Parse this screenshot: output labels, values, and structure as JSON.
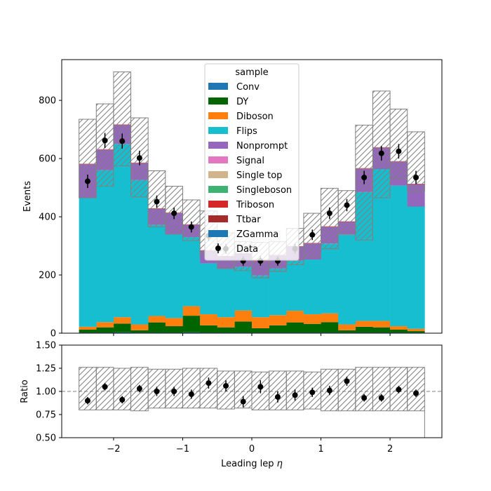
{
  "chart_data": [
    {
      "type": "bar",
      "stacked": true,
      "ylabel": "Events",
      "ylim": [
        0,
        940
      ],
      "yticks": [
        0,
        200,
        400,
        600,
        800
      ],
      "xlim": [
        -2.75,
        2.75
      ],
      "bin_edges": [
        -2.5,
        -2.25,
        -2.0,
        -1.75,
        -1.5,
        -1.25,
        -1.0,
        -0.75,
        -0.5,
        -0.25,
        0.0,
        0.25,
        0.5,
        0.75,
        1.0,
        1.25,
        1.5,
        1.75,
        2.0,
        2.25,
        2.5
      ],
      "series": [
        {
          "name": "Conv",
          "color": "#1f77b4",
          "values": [
            2,
            2,
            3,
            2,
            2,
            2,
            3,
            2,
            2,
            2,
            2,
            2,
            2,
            2,
            2,
            2,
            2,
            2,
            2,
            2
          ]
        },
        {
          "name": "DY",
          "color": "#006400",
          "values": [
            10,
            18,
            30,
            8,
            35,
            22,
            57,
            25,
            18,
            38,
            15,
            25,
            35,
            30,
            36,
            8,
            20,
            18,
            10,
            5
          ]
        },
        {
          "name": "Diboson",
          "color": "#ff7f0e",
          "values": [
            10,
            18,
            22,
            20,
            22,
            28,
            33,
            38,
            35,
            38,
            38,
            35,
            40,
            33,
            30,
            20,
            20,
            22,
            12,
            8
          ]
        },
        {
          "name": "Flips",
          "color": "#17becf",
          "values": [
            443,
            522,
            595,
            496,
            313,
            288,
            237,
            175,
            168,
            150,
            143,
            160,
            172,
            188,
            240,
            308,
            443,
            522,
            483,
            420
          ]
        },
        {
          "name": "Nonprompt",
          "color": "#9467bd",
          "values": [
            115,
            70,
            65,
            58,
            55,
            72,
            42,
            43,
            40,
            45,
            50,
            45,
            48,
            55,
            57,
            44,
            80,
            73,
            82,
            76
          ]
        },
        {
          "name": "Signal",
          "color": "#e377c2",
          "values": [
            0,
            0,
            0,
            0,
            0,
            0,
            0,
            0,
            0,
            0,
            0,
            0,
            0,
            0,
            0,
            0,
            0,
            0,
            0,
            0
          ]
        },
        {
          "name": "Single top",
          "color": "#d2b48c",
          "values": [
            0,
            0,
            0,
            0,
            0,
            0,
            0,
            0,
            0,
            0,
            0,
            0,
            0,
            0,
            0,
            0,
            0,
            0,
            0,
            0
          ]
        },
        {
          "name": "Singleboson",
          "color": "#3cb371",
          "values": [
            0,
            0,
            0,
            0,
            0,
            0,
            0,
            0,
            0,
            0,
            0,
            0,
            0,
            0,
            0,
            0,
            0,
            0,
            0,
            0
          ]
        },
        {
          "name": "Triboson",
          "color": "#d62728",
          "values": [
            1,
            1,
            1,
            1,
            1,
            1,
            1,
            1,
            1,
            1,
            1,
            1,
            1,
            1,
            1,
            1,
            1,
            1,
            1,
            1
          ]
        },
        {
          "name": "Ttbar",
          "color": "#a52a2a",
          "values": [
            1,
            1,
            1,
            1,
            1,
            1,
            1,
            1,
            1,
            1,
            1,
            1,
            1,
            1,
            1,
            1,
            1,
            1,
            1,
            1
          ]
        },
        {
          "name": "ZGamma",
          "color": "#1f77b4",
          "values": [
            0,
            0,
            0,
            0,
            0,
            0,
            0,
            0,
            0,
            0,
            0,
            0,
            0,
            0,
            0,
            0,
            0,
            0,
            0,
            0
          ]
        }
      ],
      "uncertainty_up": [
        735,
        788,
        898,
        740,
        558,
        505,
        458,
        420,
        345,
        315,
        312,
        315,
        360,
        412,
        498,
        490,
        715,
        832,
        770,
        692
      ],
      "uncertainty_down": [
        465,
        505,
        575,
        468,
        365,
        340,
        318,
        268,
        222,
        215,
        190,
        212,
        235,
        262,
        290,
        340,
        320,
        465,
        530,
        488
      ],
      "data": {
        "name": "Data",
        "x": [
          -2.375,
          -2.125,
          -1.875,
          -1.625,
          -1.375,
          -1.125,
          -0.875,
          -0.625,
          -0.375,
          -0.125,
          0.125,
          0.375,
          0.625,
          0.875,
          1.125,
          1.375,
          1.625,
          1.875,
          2.125,
          2.375
        ],
        "y": [
          522,
          662,
          660,
          602,
          452,
          412,
          365,
          335,
          290,
          248,
          248,
          248,
          290,
          338,
          412,
          440,
          535,
          618,
          625,
          535
        ],
        "yerr": [
          23,
          26,
          26,
          25,
          21,
          20,
          19,
          18,
          17,
          16,
          16,
          16,
          17,
          18,
          20,
          21,
          23,
          25,
          25,
          23
        ]
      },
      "legend": {
        "title": "sample",
        "placement": "upper center"
      }
    },
    {
      "type": "scatter",
      "xlabel": "Leading lep $\\eta$",
      "ylabel": "Ratio",
      "ylim": [
        0.5,
        1.5
      ],
      "yticks": [
        "0.50",
        "0.75",
        "1.00",
        "1.25",
        "1.50"
      ],
      "xticks": [
        "−2",
        "−1",
        "0",
        "1",
        "2"
      ],
      "xtick_values": [
        -2,
        -1,
        0,
        1,
        2
      ],
      "reference_line": 1.0,
      "x": [
        -2.375,
        -2.125,
        -1.875,
        -1.625,
        -1.375,
        -1.125,
        -0.875,
        -0.625,
        -0.375,
        -0.125,
        0.125,
        0.375,
        0.625,
        0.875,
        1.125,
        1.375,
        1.625,
        1.875,
        2.125,
        2.375
      ],
      "ratio": [
        0.9,
        1.05,
        0.91,
        1.03,
        1.0,
        1.0,
        0.97,
        1.09,
        1.06,
        0.89,
        1.05,
        0.94,
        0.96,
        0.99,
        1.01,
        1.11,
        0.93,
        0.93,
        1.02,
        0.98
      ],
      "ratio_err": [
        0.04,
        0.04,
        0.04,
        0.04,
        0.05,
        0.05,
        0.05,
        0.06,
        0.06,
        0.06,
        0.07,
        0.06,
        0.06,
        0.05,
        0.05,
        0.05,
        0.04,
        0.04,
        0.04,
        0.04
      ],
      "band_up": [
        1.26,
        1.26,
        1.25,
        1.26,
        1.24,
        1.24,
        1.25,
        1.25,
        1.22,
        1.22,
        1.21,
        1.22,
        1.22,
        1.21,
        1.24,
        1.24,
        1.26,
        1.26,
        1.26,
        1.26
      ],
      "band_down": [
        0.8,
        0.8,
        0.8,
        0.79,
        0.82,
        0.82,
        0.82,
        0.82,
        0.81,
        0.82,
        0.8,
        0.8,
        0.8,
        0.81,
        0.79,
        0.79,
        0.79,
        0.79,
        0.79,
        0.79
      ]
    }
  ]
}
